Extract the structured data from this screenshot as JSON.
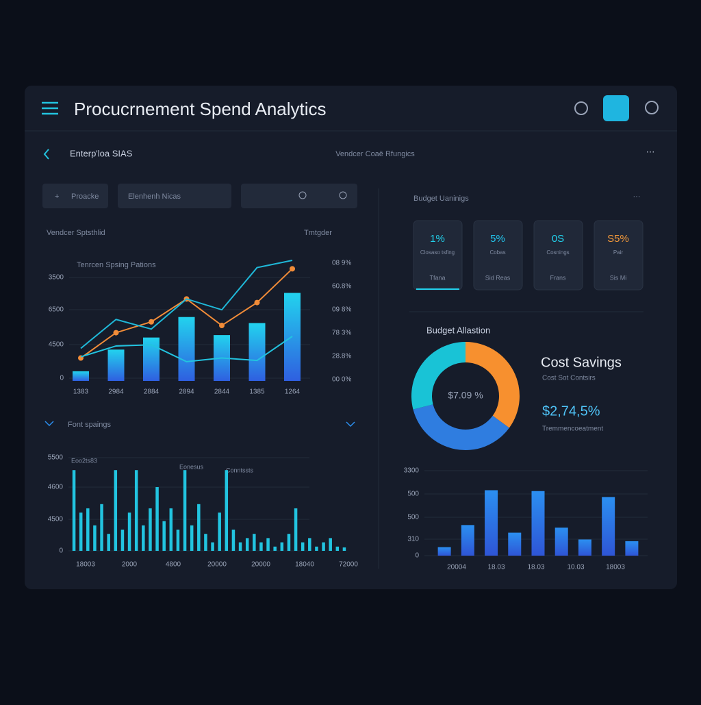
{
  "header": {
    "title": "Procucrnement Spend Analytics"
  },
  "nav": {
    "back": "Enterp'loa SIAS",
    "center": "Vendcer Coaë Rfungics"
  },
  "filters": [
    "Proacke",
    "Elenhenh Nicas"
  ],
  "left_panel": {
    "title": "Vendcer Sptsthlid",
    "menu": "Tmtgder"
  },
  "right_panel": {
    "title": "Budget Uaninigs",
    "kpis": [
      {
        "value": "1%",
        "label": "Closaso tsfing",
        "sub": "Tfana",
        "color": "#22d3ee"
      },
      {
        "value": "5%",
        "label": "Cobas",
        "sub": "Sid Reas",
        "color": "#22c6ee"
      },
      {
        "value": "0S",
        "label": "Cosnings",
        "sub": "Frans",
        "color": "#22d3ee"
      },
      {
        "value": "S5%",
        "label": "Pair",
        "sub": "Sis Mi",
        "color": "#f59a3a"
      }
    ]
  },
  "cost_savings": {
    "title": "Cost Savings",
    "subtitle": "Cost Sot Contsirs",
    "value": "$2,74,5%",
    "note": "Tremmencoeatment"
  },
  "chart_data": [
    {
      "type": "bar_line",
      "title": "Tenrcen Spsing Pations",
      "categories": [
        "1383",
        "2984",
        "2884",
        "2894",
        "2844",
        "1385",
        "1264"
      ],
      "ylim": [
        0,
        100
      ],
      "ylabels": [
        "3500",
        "6500",
        "4500",
        "0"
      ],
      "y2labels": [
        "08 9%",
        "60.8%",
        "09 8%",
        "78 3%",
        "28.8%",
        "00 0%"
      ],
      "series": [
        {
          "kind": "bar",
          "color": "#22c4e0",
          "values": [
            8,
            26,
            36,
            53,
            38,
            48,
            73
          ]
        },
        {
          "kind": "line",
          "color": "#f28c38",
          "values": [
            19,
            40,
            49,
            68,
            46,
            65,
            93
          ]
        },
        {
          "kind": "line",
          "color": "#1fb8d8",
          "values": [
            27,
            51,
            43,
            68,
            59,
            94,
            100
          ]
        },
        {
          "kind": "line",
          "color": "#22c4e0",
          "values": [
            20,
            29,
            30,
            16,
            19,
            17,
            37
          ]
        }
      ]
    },
    {
      "type": "bar",
      "title": "Font spaings",
      "annotations": [
        "Eoo2ts83",
        "Eonesus",
        "Conntssts"
      ],
      "ylim": [
        0,
        100
      ],
      "ylabels": [
        "5500",
        "4600",
        "4500",
        "0"
      ],
      "xlabels": [
        "18003",
        "2000",
        "4800",
        "20000",
        "20000",
        "18040",
        "72000"
      ],
      "color": "#22c4e0",
      "values": [
        95,
        45,
        50,
        30,
        55,
        20,
        95,
        25,
        45,
        95,
        30,
        50,
        75,
        35,
        50,
        25,
        95,
        30,
        55,
        20,
        10,
        45,
        95,
        25,
        10,
        15,
        20,
        10,
        15,
        5,
        10,
        20,
        50,
        10,
        15,
        5,
        10,
        15,
        5,
        4
      ]
    },
    {
      "type": "pie",
      "title": "Budget Allastion",
      "center_label": "$7.09 %",
      "values": [
        35,
        36,
        29
      ],
      "colors": [
        "#f7902f",
        "#2f7de0",
        "#19c3d6"
      ]
    },
    {
      "type": "bar",
      "ylim": [
        0,
        100
      ],
      "ylabels": [
        "3300",
        "500",
        "500",
        "310",
        "0"
      ],
      "xlabels": [
        "20004",
        "18.03",
        "18.03",
        "10.03",
        "18003"
      ],
      "color": "#2b7fe6",
      "values": [
        10,
        36,
        77,
        27,
        76,
        33,
        19,
        69,
        17
      ]
    }
  ]
}
